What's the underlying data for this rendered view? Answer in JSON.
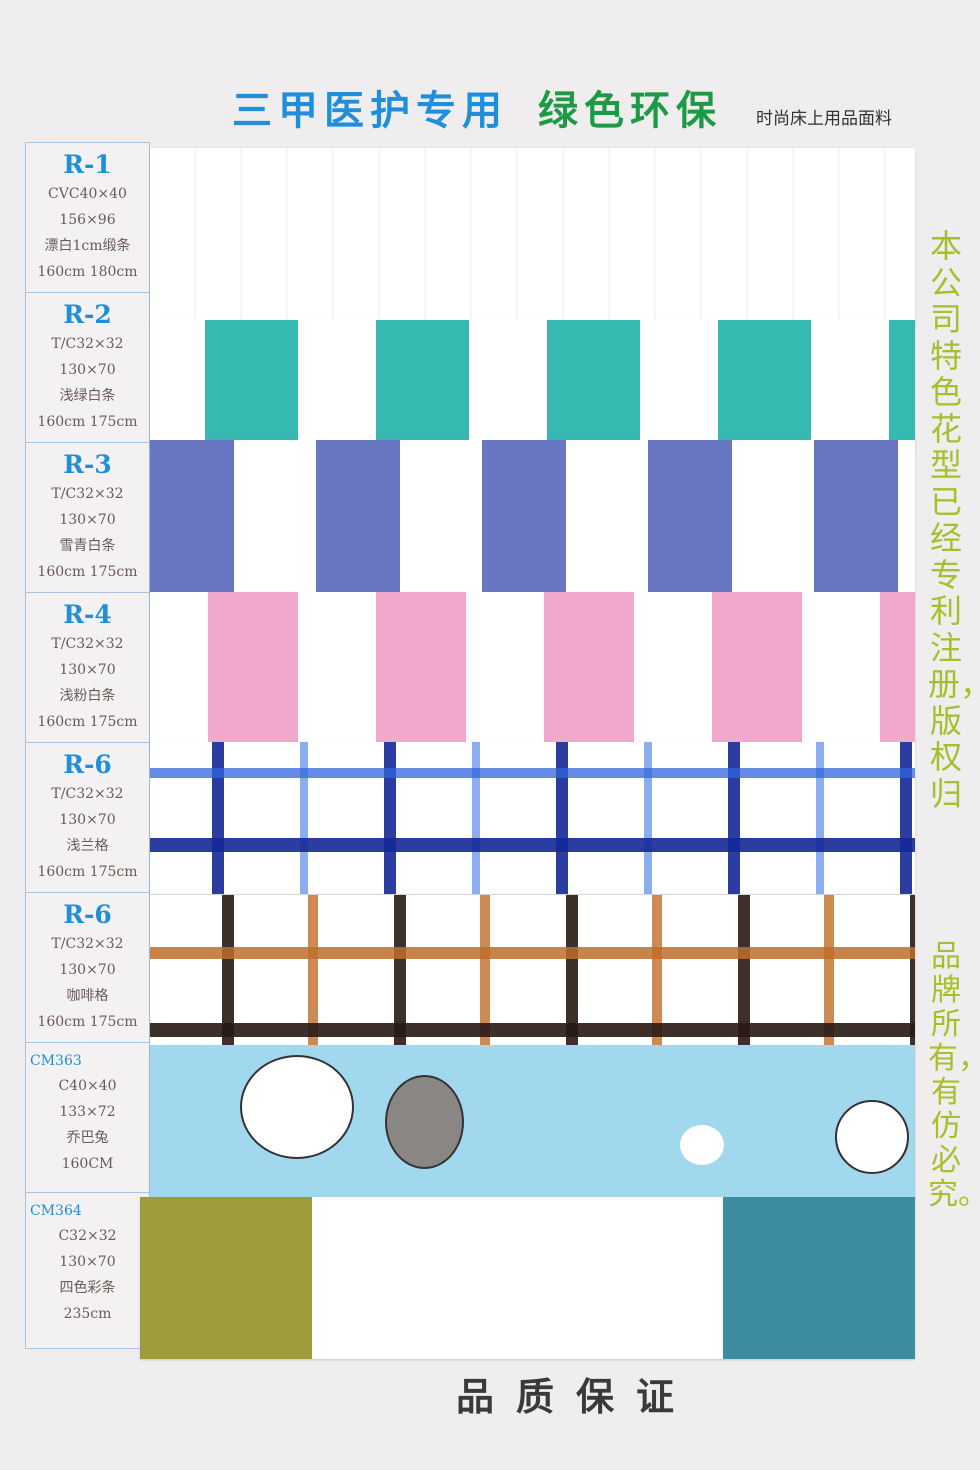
{
  "header": {
    "title_blue": "三甲医护专用",
    "title_green": "绿色环保",
    "subtitle": "时尚床上用品面料"
  },
  "samples": [
    {
      "code": "R-1",
      "spec": "CVC40×40",
      "density": "156×96",
      "desc": "漂白1cm缎条",
      "width": "160cm  180cm",
      "pattern": "white-satin-stripe"
    },
    {
      "code": "R-2",
      "spec": "T/C32×32",
      "density": "130×70",
      "desc": "浅绿白条",
      "width": "160cm  175cm",
      "pattern": "stripe",
      "color": "#35b9b1"
    },
    {
      "code": "R-3",
      "spec": "T/C32×32",
      "density": "130×70",
      "desc": "雪青白条",
      "width": "160cm  175cm",
      "pattern": "stripe",
      "color": "#6977c3"
    },
    {
      "code": "R-4",
      "spec": "T/C32×32",
      "density": "130×70",
      "desc": "浅粉白条",
      "width": "160cm  175cm",
      "pattern": "stripe",
      "color": "#f0a9cd"
    },
    {
      "code": "R-6",
      "spec": "T/C32×32",
      "density": "130×70",
      "desc": "浅兰格",
      "width": "160cm  175cm",
      "pattern": "check",
      "color": "#1d3a9c"
    },
    {
      "code": "R-6",
      "spec": "T/C32×32",
      "density": "130×70",
      "desc": "咖啡格",
      "width": "160cm  175cm",
      "pattern": "check",
      "color": "#8a5a2a"
    },
    {
      "code": "CM363",
      "spec": "C40×40",
      "density": "133×72",
      "desc": "乔巴兔",
      "width": "160CM",
      "pattern": "cartoon",
      "color": "#a2d8ee"
    },
    {
      "code": "CM364",
      "spec": "C32×32",
      "density": "130×70",
      "desc": "四色彩条",
      "width": "235cm",
      "pattern": "color-block",
      "colors": [
        "#9d9c3b",
        "#ffffff",
        "#3c8ca2"
      ]
    }
  ],
  "side_text": {
    "line1": "本公司特色花型已经专利注册，版权归",
    "line2": "品牌所有，有仿必究。"
  },
  "footer": {
    "text": "品质保证"
  }
}
